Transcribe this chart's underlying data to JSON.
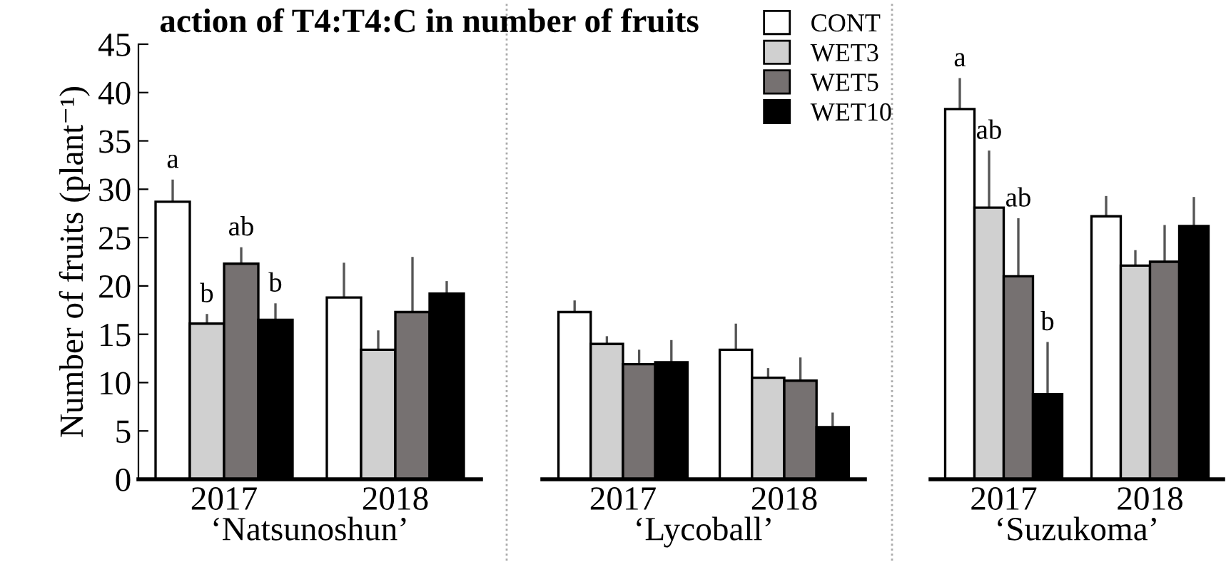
{
  "chart_data": [
    {
      "type": "bar",
      "title": "action of T4:T4:C in number of fruits",
      "categories": [
        "2017",
        "2018"
      ],
      "xlabel": "‘Natsunoshun’",
      "ylabel": "Number of fruits (plant⁻¹)",
      "ylim": [
        0,
        45
      ],
      "yticks": [
        0,
        5,
        10,
        15,
        20,
        25,
        30,
        35,
        40,
        45
      ],
      "grid": false,
      "legend": "top right",
      "series": [
        {
          "name": "CONT",
          "color": "#ffffff",
          "values": [
            28.7,
            18.8
          ],
          "errors": [
            [
              28.7,
              31.0
            ],
            [
              18.8,
              22.4
            ]
          ],
          "value_labels": [
            "a",
            null
          ]
        },
        {
          "name": "WET3",
          "color": "#d0d0d0",
          "values": [
            16.1,
            13.4
          ],
          "errors": [
            [
              16.1,
              17.1
            ],
            [
              13.4,
              15.4
            ]
          ],
          "value_labels": [
            "b",
            null
          ]
        },
        {
          "name": "WET5",
          "color": "#767171",
          "values": [
            22.3,
            17.3
          ],
          "errors": [
            [
              22.3,
              24.0
            ],
            [
              17.3,
              23.0
            ]
          ],
          "value_labels": [
            "ab",
            null
          ]
        },
        {
          "name": "WET10",
          "color": "#000000",
          "values": [
            16.5,
            19.2
          ],
          "errors": [
            [
              16.5,
              18.2
            ],
            [
              19.2,
              20.5
            ]
          ],
          "value_labels": [
            "b",
            null
          ]
        }
      ]
    },
    {
      "type": "bar",
      "categories": [
        "2017",
        "2018"
      ],
      "xlabel": "‘Lycoball’",
      "ylim": [
        0,
        45
      ],
      "tick_labels": "x",
      "grid": false,
      "series": [
        {
          "color": "#ffffff",
          "values": [
            17.3,
            13.4
          ],
          "errors": [
            [
              17.3,
              18.5
            ],
            [
              13.4,
              16.1
            ]
          ]
        },
        {
          "color": "#d0d0d0",
          "values": [
            14.0,
            10.5
          ],
          "errors": [
            [
              14.0,
              14.8
            ],
            [
              10.5,
              11.5
            ]
          ]
        },
        {
          "color": "#767171",
          "values": [
            11.9,
            10.2
          ],
          "errors": [
            [
              11.9,
              13.4
            ],
            [
              10.2,
              12.6
            ]
          ]
        },
        {
          "color": "#000000",
          "values": [
            12.1,
            5.4
          ],
          "errors": [
            [
              12.1,
              14.4
            ],
            [
              5.4,
              6.9
            ]
          ]
        }
      ]
    },
    {
      "type": "bar",
      "categories": [
        "2017",
        "2018"
      ],
      "xlabel": "‘Suzukoma’",
      "ylim": [
        0,
        45
      ],
      "tick_labels": "x",
      "grid": false,
      "series": [
        {
          "color": "#ffffff",
          "values": [
            38.3,
            27.2
          ],
          "errors": [
            [
              38.3,
              41.5
            ],
            [
              27.2,
              29.3
            ]
          ],
          "value_labels": [
            "a",
            null
          ]
        },
        {
          "color": "#d0d0d0",
          "values": [
            28.1,
            22.1
          ],
          "errors": [
            [
              28.1,
              34.0
            ],
            [
              22.1,
              23.7
            ]
          ],
          "value_labels": [
            "ab",
            null
          ]
        },
        {
          "color": "#767171",
          "values": [
            21.0,
            22.5
          ],
          "errors": [
            [
              21.0,
              27.0
            ],
            [
              22.5,
              26.3
            ]
          ],
          "value_labels": [
            "ab",
            null
          ]
        },
        {
          "color": "#000000",
          "values": [
            8.8,
            26.2
          ],
          "errors": [
            [
              8.8,
              14.2
            ],
            [
              26.2,
              29.2
            ]
          ],
          "value_labels": [
            "b",
            null
          ]
        }
      ]
    }
  ]
}
